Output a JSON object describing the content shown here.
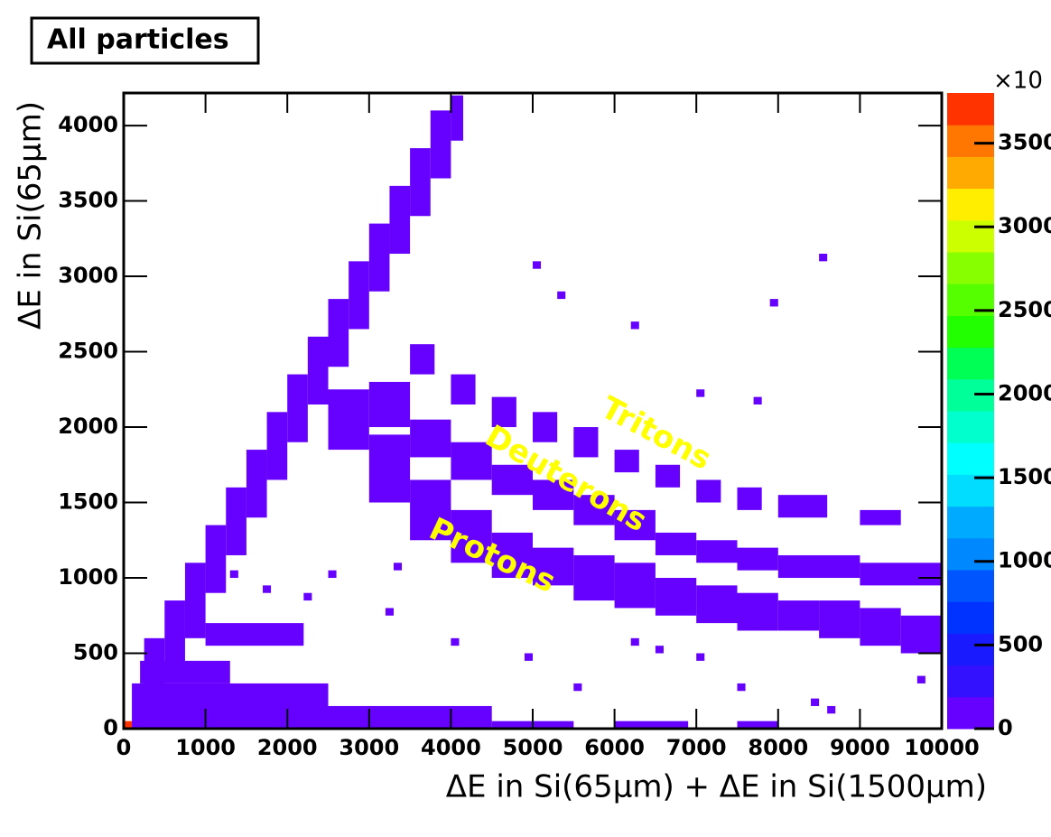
{
  "chart_data": {
    "type": "heatmap2d",
    "title": "All particles",
    "x_label": "ΔE in Si(65µm) + ΔE in Si(1500µm)",
    "y_label": "ΔE in Si(65µm)",
    "xlim": [
      0,
      10000
    ],
    "ylim": [
      0,
      4216
    ],
    "xticks": [
      0,
      1000,
      2000,
      3000,
      4000,
      5000,
      6000,
      7000,
      8000,
      9000,
      10000
    ],
    "yticks": [
      0,
      500,
      1000,
      1500,
      2000,
      2500,
      3000,
      3500,
      4000
    ],
    "zlim": [
      0,
      3800
    ],
    "zticks": [
      0,
      500,
      1000,
      1500,
      2000,
      2500,
      3000,
      3500
    ],
    "z_multiplier": "×10",
    "palette": [
      "#6600ff",
      "#3311ff",
      "#1a1aff",
      "#0033ff",
      "#0055ff",
      "#0088ff",
      "#00aaff",
      "#00ddff",
      "#00ffff",
      "#00ffcc",
      "#00ff99",
      "#00ff55",
      "#22ff00",
      "#55ff00",
      "#88ff00",
      "#ccff00",
      "#ffee00",
      "#ffaa00",
      "#ff7700",
      "#ff3300"
    ],
    "annotations": [
      {
        "text": "Tritons",
        "x": 6500,
        "y": 1950,
        "angle": 28
      },
      {
        "text": "Deuterons",
        "x": 5400,
        "y": 1650,
        "angle": 30
      },
      {
        "text": "Protons",
        "x": 4500,
        "y": 1140,
        "angle": 25
      }
    ],
    "cells": [
      [
        0,
        100,
        0,
        50,
        3700
      ],
      [
        100,
        2500,
        0,
        300,
        150
      ],
      [
        200,
        1300,
        300,
        450,
        120
      ],
      [
        2500,
        4500,
        0,
        150,
        60
      ],
      [
        1000,
        2200,
        550,
        700,
        20
      ],
      [
        250,
        500,
        100,
        600,
        80
      ],
      [
        500,
        750,
        350,
        850,
        80
      ],
      [
        750,
        1000,
        600,
        1100,
        80
      ],
      [
        1000,
        1250,
        900,
        1350,
        70
      ],
      [
        1250,
        1500,
        1150,
        1600,
        70
      ],
      [
        1500,
        1750,
        1400,
        1850,
        70
      ],
      [
        1750,
        2000,
        1650,
        2100,
        60
      ],
      [
        2000,
        2250,
        1900,
        2350,
        60
      ],
      [
        2250,
        2500,
        2150,
        2600,
        60
      ],
      [
        2500,
        2750,
        2400,
        2850,
        50
      ],
      [
        2750,
        3000,
        2650,
        3100,
        50
      ],
      [
        3000,
        3250,
        2900,
        3350,
        40
      ],
      [
        3250,
        3500,
        3150,
        3600,
        40
      ],
      [
        3500,
        3750,
        3400,
        3850,
        30
      ],
      [
        3750,
        4000,
        3650,
        4100,
        30
      ],
      [
        4000,
        4150,
        3900,
        4200,
        20
      ],
      [
        2500,
        3000,
        1850,
        2250,
        150
      ],
      [
        3000,
        3500,
        1500,
        1950,
        150
      ],
      [
        3500,
        4000,
        1250,
        1650,
        150
      ],
      [
        4000,
        4500,
        1100,
        1450,
        150
      ],
      [
        4500,
        5000,
        1000,
        1300,
        150
      ],
      [
        5000,
        5500,
        950,
        1200,
        150
      ],
      [
        5500,
        6000,
        850,
        1150,
        150
      ],
      [
        6000,
        6500,
        800,
        1100,
        150
      ],
      [
        6500,
        7000,
        750,
        1000,
        150
      ],
      [
        7000,
        7500,
        700,
        950,
        150
      ],
      [
        7500,
        8000,
        650,
        900,
        150
      ],
      [
        8000,
        8500,
        650,
        850,
        150
      ],
      [
        8500,
        9000,
        600,
        850,
        150
      ],
      [
        9000,
        9500,
        550,
        800,
        150
      ],
      [
        9500,
        10000,
        500,
        750,
        150
      ],
      [
        3000,
        3500,
        2000,
        2300,
        60
      ],
      [
        3500,
        4000,
        1800,
        2050,
        60
      ],
      [
        4000,
        4500,
        1650,
        1900,
        60
      ],
      [
        4500,
        5000,
        1550,
        1750,
        60
      ],
      [
        5000,
        5500,
        1450,
        1650,
        60
      ],
      [
        5500,
        6000,
        1350,
        1550,
        60
      ],
      [
        6000,
        6500,
        1250,
        1450,
        60
      ],
      [
        6500,
        7000,
        1150,
        1300,
        60
      ],
      [
        7000,
        7500,
        1100,
        1250,
        60
      ],
      [
        7500,
        8000,
        1050,
        1200,
        60
      ],
      [
        8000,
        9000,
        1000,
        1150,
        60
      ],
      [
        9000,
        10000,
        950,
        1100,
        60
      ],
      [
        3500,
        3800,
        2350,
        2550,
        30
      ],
      [
        4000,
        4300,
        2150,
        2350,
        30
      ],
      [
        4500,
        4800,
        2000,
        2200,
        30
      ],
      [
        5000,
        5300,
        1900,
        2100,
        30
      ],
      [
        5500,
        5800,
        1800,
        2000,
        30
      ],
      [
        6000,
        6300,
        1700,
        1850,
        30
      ],
      [
        6500,
        6800,
        1600,
        1750,
        30
      ],
      [
        7000,
        7300,
        1500,
        1650,
        30
      ],
      [
        7500,
        7800,
        1450,
        1600,
        30
      ],
      [
        8000,
        8600,
        1400,
        1550,
        30
      ],
      [
        9000,
        9500,
        1350,
        1450,
        30
      ],
      [
        4500,
        5500,
        0,
        50,
        20
      ],
      [
        6000,
        6900,
        0,
        50,
        20
      ],
      [
        7500,
        8000,
        0,
        50,
        20
      ],
      [
        8500,
        8600,
        3100,
        3150,
        20
      ],
      [
        7900,
        8000,
        2800,
        2850,
        20
      ],
      [
        5000,
        5100,
        3050,
        3100,
        20
      ],
      [
        5300,
        5400,
        2850,
        2900,
        20
      ],
      [
        6200,
        6300,
        2650,
        2700,
        20
      ],
      [
        7700,
        7800,
        2150,
        2200,
        20
      ],
      [
        7000,
        7100,
        2200,
        2250,
        20
      ],
      [
        1800,
        1900,
        1700,
        1750,
        20
      ],
      [
        1300,
        1400,
        1000,
        1050,
        20
      ],
      [
        2500,
        2600,
        1000,
        1050,
        20
      ],
      [
        3300,
        3400,
        1050,
        1100,
        20
      ],
      [
        1700,
        1800,
        900,
        950,
        20
      ],
      [
        2200,
        2300,
        850,
        900,
        20
      ],
      [
        3200,
        3300,
        750,
        800,
        20
      ],
      [
        4000,
        4100,
        550,
        600,
        20
      ],
      [
        6200,
        6300,
        550,
        600,
        20
      ],
      [
        6500,
        6600,
        500,
        550,
        20
      ],
      [
        4900,
        5000,
        450,
        500,
        20
      ],
      [
        7000,
        7100,
        450,
        500,
        20
      ],
      [
        7500,
        7600,
        250,
        300,
        20
      ],
      [
        5500,
        5600,
        250,
        300,
        20
      ],
      [
        8400,
        8500,
        150,
        200,
        20
      ],
      [
        8600,
        8700,
        100,
        150,
        20
      ],
      [
        9700,
        9800,
        300,
        350,
        20
      ]
    ]
  }
}
